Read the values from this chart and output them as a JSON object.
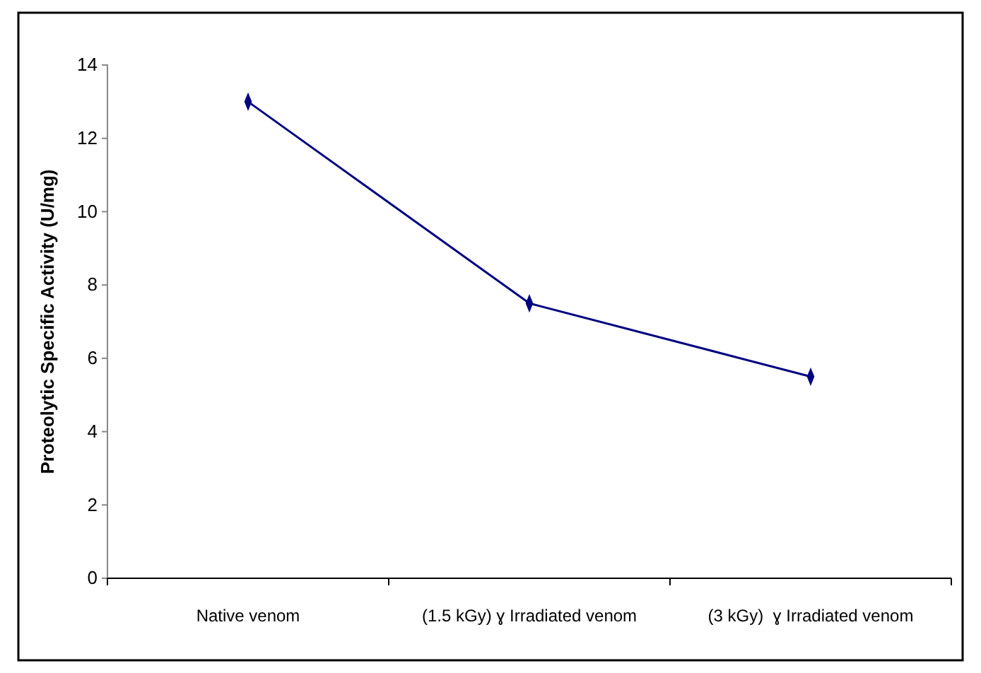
{
  "chart_data": {
    "type": "line",
    "ylabel": "Proteolytic Specific Activity (U/mg)",
    "categories": [
      "Native venom",
      "(1.5 kGy) ɣ Irradiated venom",
      "(3 kGy)  ɣ Irradiated venom"
    ],
    "series": [
      {
        "color": "#000080",
        "values": [
          13,
          7.5,
          5.5
        ]
      }
    ],
    "ylim": [
      0,
      14
    ],
    "yticks": [
      0,
      2,
      4,
      6,
      8,
      10,
      12,
      14
    ],
    "marker": "diamond",
    "grid": false
  }
}
